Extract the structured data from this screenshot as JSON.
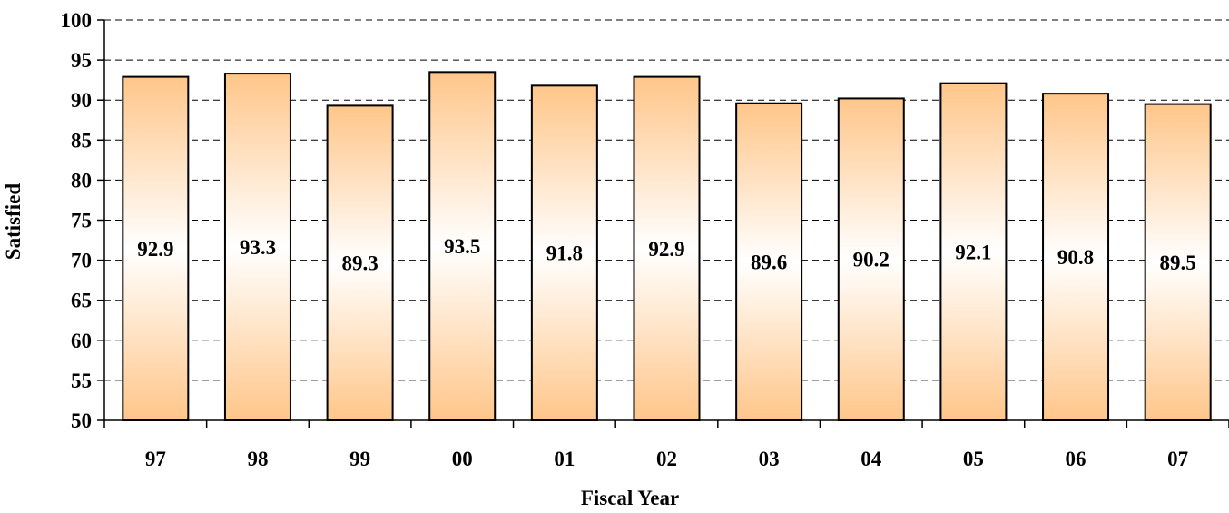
{
  "chart_data": {
    "type": "bar",
    "categories": [
      "97",
      "98",
      "99",
      "00",
      "01",
      "02",
      "03",
      "04",
      "05",
      "06",
      "07"
    ],
    "values": [
      92.9,
      93.3,
      89.3,
      93.5,
      91.8,
      92.9,
      89.6,
      90.2,
      92.1,
      90.8,
      89.5
    ],
    "data_labels": [
      "92.9",
      "93.3",
      "89.3",
      "93.5",
      "91.8",
      "92.9",
      "89.6",
      "90.2",
      "92.1",
      "90.8",
      "89.5"
    ],
    "xlabel": "Fiscal Year",
    "ylabel": "Satisfied",
    "ylim": [
      50,
      100
    ],
    "yticks": [
      "100",
      "95",
      "90",
      "85",
      "80",
      "75",
      "70",
      "65",
      "60",
      "55",
      "50"
    ],
    "grid": true,
    "legend": "none",
    "colors": {
      "bar_edge": "#FFC68A",
      "bar_center": "#FFFFFF",
      "bar_outline": "#000000",
      "grid": "#000000"
    }
  }
}
